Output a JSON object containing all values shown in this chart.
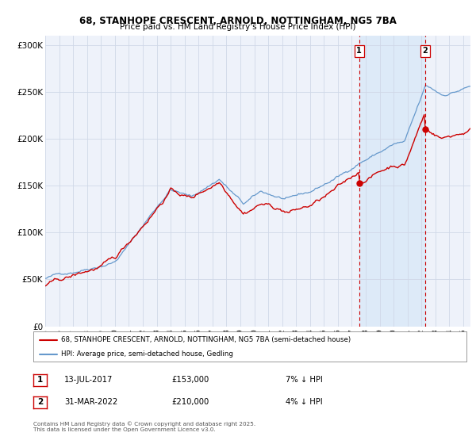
{
  "title1": "68, STANHOPE CRESCENT, ARNOLD, NOTTINGHAM, NG5 7BA",
  "title2": "Price paid vs. HM Land Registry's House Price Index (HPI)",
  "legend_red": "68, STANHOPE CRESCENT, ARNOLD, NOTTINGHAM, NG5 7BA (semi-detached house)",
  "legend_blue": "HPI: Average price, semi-detached house, Gedling",
  "transaction1_date": "13-JUL-2017",
  "transaction1_price": 153000,
  "transaction1_price_str": "£153,000",
  "transaction1_note": "7% ↓ HPI",
  "transaction2_date": "31-MAR-2022",
  "transaction2_price": 210000,
  "transaction2_price_str": "£210,000",
  "transaction2_note": "4% ↓ HPI",
  "transaction1_year": 2017.53,
  "transaction2_year": 2022.25,
  "xmin": 1995,
  "xmax": 2025.5,
  "ymin": 0,
  "ymax": 310000,
  "yticks": [
    0,
    50000,
    100000,
    150000,
    200000,
    250000,
    300000
  ],
  "ytick_labels": [
    "£0",
    "£50K",
    "£100K",
    "£150K",
    "£200K",
    "£250K",
    "£300K"
  ],
  "xticks": [
    1995,
    1996,
    1997,
    1998,
    1999,
    2000,
    2001,
    2002,
    2003,
    2004,
    2005,
    2006,
    2007,
    2008,
    2009,
    2010,
    2011,
    2012,
    2013,
    2014,
    2015,
    2016,
    2017,
    2018,
    2019,
    2020,
    2021,
    2022,
    2023,
    2024,
    2025
  ],
  "background_color": "#ffffff",
  "plot_bg_color": "#eef2fa",
  "highlight_bg_color": "#ddeaf8",
  "red_line_color": "#cc0000",
  "blue_line_color": "#6699cc",
  "dashed_line_color": "#cc0000",
  "grid_color": "#d0d8e8",
  "footnote": "Contains HM Land Registry data © Crown copyright and database right 2025.\nThis data is licensed under the Open Government Licence v3.0."
}
